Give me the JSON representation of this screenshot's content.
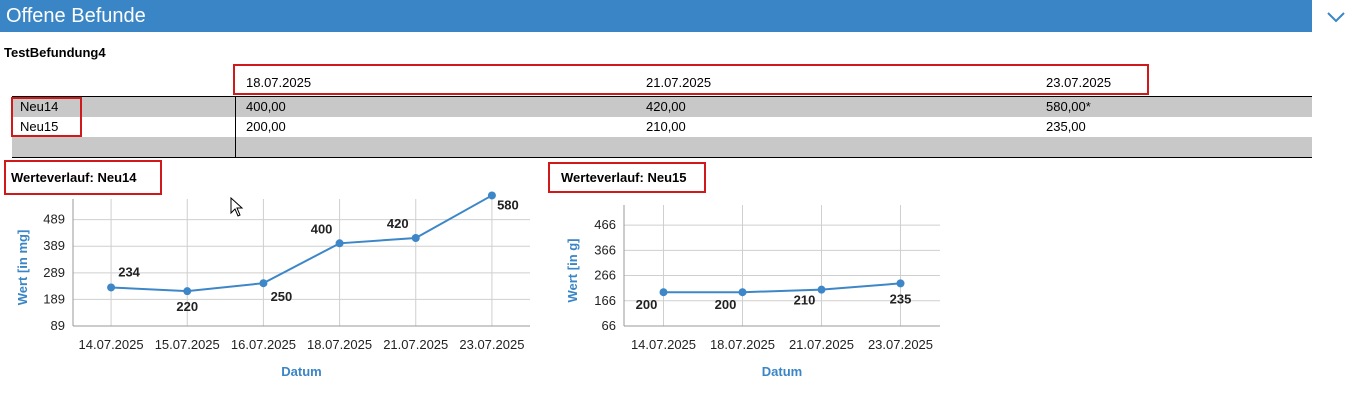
{
  "header": {
    "title": "Offene Befunde"
  },
  "section": {
    "title": "TestBefundung4"
  },
  "table": {
    "dates": [
      "18.07.2025",
      "21.07.2025",
      "23.07.2025"
    ],
    "rows": [
      {
        "name": "Neu14",
        "values": [
          "400,00",
          "420,00",
          "580,00*"
        ]
      },
      {
        "name": "Neu15",
        "values": [
          "200,00",
          "210,00",
          "235,00"
        ]
      }
    ]
  },
  "colors": {
    "accent": "#3a85c6",
    "highlight": "#d0191b",
    "row_gray": "#c8c8c8",
    "line": "#3d87c8"
  },
  "chart_data": [
    {
      "type": "line",
      "title": "Werteverlauf: Neu14",
      "xlabel": "Datum",
      "ylabel": "Wert [in mg]",
      "categories": [
        "14.07.2025",
        "15.07.2025",
        "16.07.2025",
        "18.07.2025",
        "21.07.2025",
        "23.07.2025"
      ],
      "values": [
        234,
        220,
        250,
        400,
        420,
        580
      ],
      "value_labels": [
        "234",
        "220",
        "250",
        "400",
        "420",
        "580"
      ],
      "yticks": [
        "89",
        "189",
        "289",
        "389",
        "489"
      ],
      "ylim": [
        89,
        529
      ],
      "grid": true
    },
    {
      "type": "line",
      "title": "Werteverlauf: Neu15",
      "xlabel": "Datum",
      "ylabel": "Wert [in g]",
      "categories": [
        "14.07.2025",
        "18.07.2025",
        "21.07.2025",
        "23.07.2025"
      ],
      "values": [
        200,
        200,
        210,
        235
      ],
      "value_labels": [
        "200",
        "200",
        "210",
        "235"
      ],
      "yticks": [
        "66",
        "166",
        "266",
        "366",
        "466"
      ],
      "ylim": [
        66,
        506
      ],
      "grid": true
    }
  ]
}
